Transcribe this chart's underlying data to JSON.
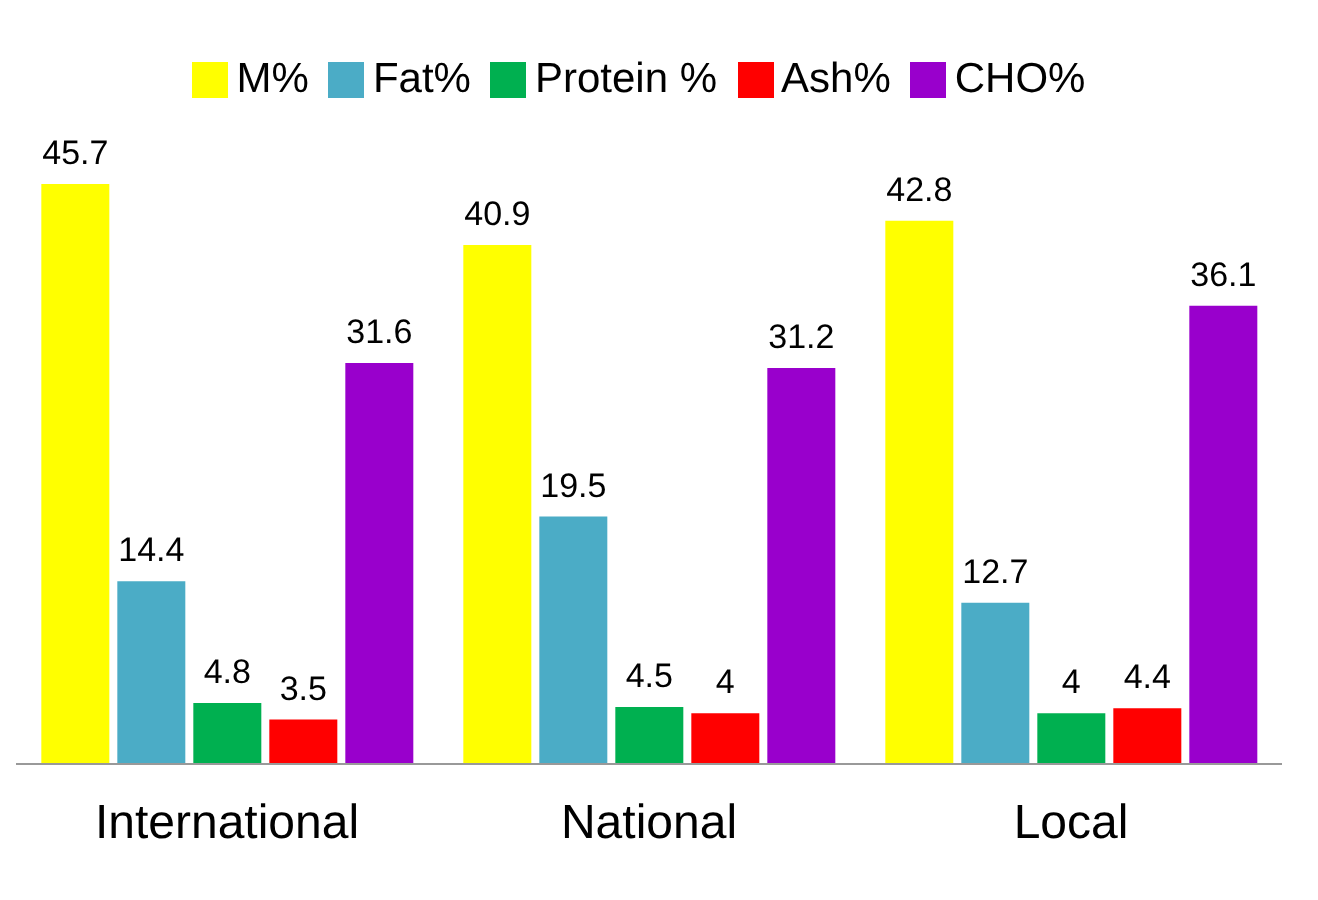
{
  "chart_data": {
    "type": "bar",
    "categories": [
      "International",
      "National",
      "Local"
    ],
    "series": [
      {
        "name": "M%",
        "color": "#ffff00",
        "values": [
          45.7,
          40.9,
          42.8
        ]
      },
      {
        "name": "Fat%",
        "color": "#4bacc6",
        "values": [
          14.4,
          19.5,
          12.7
        ]
      },
      {
        "name": "Protein %",
        "color": "#00b050",
        "values": [
          4.8,
          4.5,
          4
        ]
      },
      {
        "name": "Ash%",
        "color": "#ff0000",
        "values": [
          3.5,
          4,
          4.4
        ]
      },
      {
        "name": "CHO%",
        "color": "#9900cc",
        "values": [
          31.6,
          31.2,
          36.1
        ]
      }
    ],
    "data_labels": true,
    "legend": "top",
    "grid": false,
    "tick_labels": "x"
  }
}
